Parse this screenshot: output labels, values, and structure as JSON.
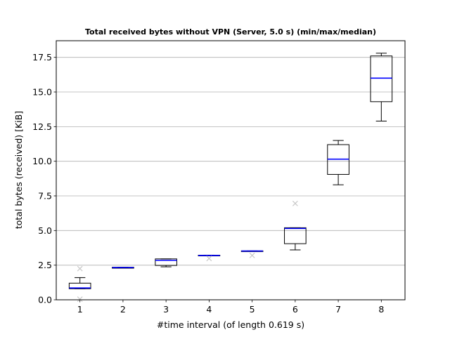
{
  "chart_data": {
    "type": "box",
    "title": "Total received bytes without VPN (Server, 5.0 s) (min/max/median)",
    "xlabel": "#time interval (of length 0.619 s)",
    "ylabel": "total bytes (received) [KiB]",
    "xlim": [
      0.45,
      8.55
    ],
    "ylim": [
      0,
      18.7
    ],
    "grid": "horizontal",
    "median_color": "#0000ff",
    "outlier_color": "#c8c8c8",
    "categories": [
      "1",
      "2",
      "3",
      "4",
      "5",
      "6",
      "7",
      "8"
    ],
    "yticks": [
      0.0,
      2.5,
      5.0,
      7.5,
      10.0,
      12.5,
      15.0,
      17.5
    ],
    "ytick_labels": [
      "0.0",
      "2.5",
      "5.0",
      "7.5",
      "10.0",
      "12.5",
      "15.0",
      "17.5"
    ],
    "boxes": [
      {
        "x": 1,
        "whisker_low": 0.8,
        "q1": 0.8,
        "median": 0.85,
        "q3": 1.2,
        "whisker_high": 1.6,
        "outliers": [
          2.25,
          0.05
        ]
      },
      {
        "x": 2,
        "whisker_low": 2.28,
        "q1": 2.28,
        "median": 2.32,
        "q3": 2.35,
        "whisker_high": 2.35,
        "outliers": []
      },
      {
        "x": 3,
        "whisker_low": 2.38,
        "q1": 2.48,
        "median": 2.85,
        "q3": 2.95,
        "whisker_high": 2.95,
        "outliers": []
      },
      {
        "x": 4,
        "whisker_low": 3.2,
        "q1": 3.2,
        "median": 3.2,
        "q3": 3.22,
        "whisker_high": 3.22,
        "outliers": [
          2.98
        ]
      },
      {
        "x": 5,
        "whisker_low": 3.5,
        "q1": 3.5,
        "median": 3.52,
        "q3": 3.53,
        "whisker_high": 3.53,
        "outliers": [
          3.2
        ]
      },
      {
        "x": 6,
        "whisker_low": 3.6,
        "q1": 4.05,
        "median": 5.15,
        "q3": 5.2,
        "whisker_high": 5.2,
        "outliers": [
          6.95
        ]
      },
      {
        "x": 7,
        "whisker_low": 8.3,
        "q1": 9.05,
        "median": 10.15,
        "q3": 11.2,
        "whisker_high": 11.5,
        "outliers": []
      },
      {
        "x": 8,
        "whisker_low": 12.9,
        "q1": 14.3,
        "median": 16.0,
        "q3": 17.6,
        "whisker_high": 17.8,
        "outliers": []
      }
    ]
  }
}
